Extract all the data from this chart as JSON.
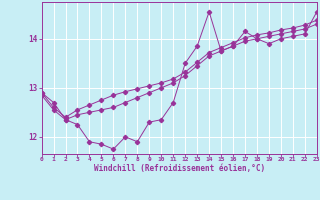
{
  "x": [
    0,
    1,
    2,
    3,
    4,
    5,
    6,
    7,
    8,
    9,
    10,
    11,
    12,
    13,
    14,
    15,
    16,
    17,
    18,
    19,
    20,
    21,
    22,
    23
  ],
  "line1": [
    12.9,
    12.7,
    12.35,
    12.25,
    11.9,
    11.85,
    11.75,
    12.0,
    11.9,
    12.3,
    12.35,
    12.7,
    13.5,
    13.85,
    14.55,
    13.75,
    13.85,
    14.15,
    14.0,
    13.9,
    14.0,
    14.05,
    14.1,
    14.55
  ],
  "line2": [
    12.85,
    12.55,
    12.35,
    12.45,
    12.5,
    12.55,
    12.6,
    12.7,
    12.8,
    12.9,
    13.0,
    13.1,
    13.25,
    13.45,
    13.65,
    13.75,
    13.85,
    13.95,
    14.0,
    14.05,
    14.1,
    14.15,
    14.2,
    14.3
  ],
  "line3": [
    12.9,
    12.6,
    12.4,
    12.55,
    12.65,
    12.75,
    12.85,
    12.92,
    12.98,
    13.04,
    13.1,
    13.18,
    13.32,
    13.52,
    13.72,
    13.82,
    13.92,
    14.02,
    14.08,
    14.12,
    14.18,
    14.22,
    14.28,
    14.38
  ],
  "line_color": "#993399",
  "bg_color": "#c8eef5",
  "grid_color": "#ffffff",
  "xlabel": "Windchill (Refroidissement éolien,°C)",
  "xlim": [
    0,
    23
  ],
  "ylim": [
    11.65,
    14.75
  ],
  "yticks": [
    12,
    13,
    14
  ],
  "xticks": [
    0,
    1,
    2,
    3,
    4,
    5,
    6,
    7,
    8,
    9,
    10,
    11,
    12,
    13,
    14,
    15,
    16,
    17,
    18,
    19,
    20,
    21,
    22,
    23
  ]
}
